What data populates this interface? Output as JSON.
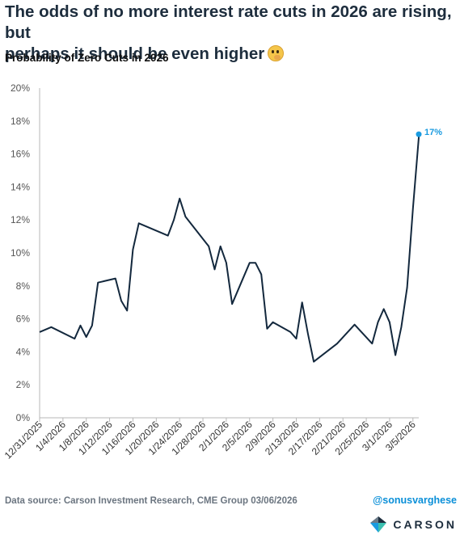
{
  "headline": {
    "line1": "The odds of no more interest rate cuts in 2026 are rising, but",
    "line2": "perhaps it should be even higher"
  },
  "chart_data": {
    "type": "line",
    "title": "Probability of Zero Cuts in 2026",
    "xlabel": "",
    "ylabel": "",
    "x_ticks": [
      "12/31/2025",
      "1/4/2026",
      "1/8/2026",
      "1/12/2026",
      "1/16/2026",
      "1/20/2026",
      "1/24/2026",
      "1/28/2026",
      "2/1/2026",
      "2/5/2026",
      "2/9/2026",
      "2/13/2026",
      "2/17/2026",
      "2/21/2026",
      "2/25/2026",
      "3/1/2026",
      "3/5/2026"
    ],
    "y_ticks": [
      "0%",
      "2%",
      "4%",
      "6%",
      "8%",
      "10%",
      "12%",
      "14%",
      "16%",
      "18%",
      "20%"
    ],
    "ylim": [
      0,
      20
    ],
    "xlim": [
      "12/31/2025",
      "3/6/2026"
    ],
    "grid": false,
    "line_color": "#13283d",
    "end_point_color": "#1a9be0",
    "end_label": "17%",
    "series": [
      {
        "values": [
          {
            "x": "12/31/2025",
            "y": 5.2
          },
          {
            "x": "1/2/2026",
            "y": 5.5
          },
          {
            "x": "1/6/2026",
            "y": 4.8
          },
          {
            "x": "1/7/2026",
            "y": 5.6
          },
          {
            "x": "1/8/2026",
            "y": 4.9
          },
          {
            "x": "1/9/2026",
            "y": 5.6
          },
          {
            "x": "1/10/2026",
            "y": 8.2
          },
          {
            "x": "1/13/2026",
            "y": 8.45
          },
          {
            "x": "1/14/2026",
            "y": 7.1
          },
          {
            "x": "1/15/2026",
            "y": 6.5
          },
          {
            "x": "1/16/2026",
            "y": 10.2
          },
          {
            "x": "1/17/2026",
            "y": 11.8
          },
          {
            "x": "1/22/2026",
            "y": 11.05
          },
          {
            "x": "1/23/2026",
            "y": 12.0
          },
          {
            "x": "1/24/2026",
            "y": 13.3
          },
          {
            "x": "1/25/2026",
            "y": 12.2
          },
          {
            "x": "1/29/2026",
            "y": 10.4
          },
          {
            "x": "1/30/2026",
            "y": 9.0
          },
          {
            "x": "1/31/2026",
            "y": 10.4
          },
          {
            "x": "2/1/2026",
            "y": 9.4
          },
          {
            "x": "2/2/2026",
            "y": 6.9
          },
          {
            "x": "2/5/2026",
            "y": 9.4
          },
          {
            "x": "2/6/2026",
            "y": 9.4
          },
          {
            "x": "2/7/2026",
            "y": 8.7
          },
          {
            "x": "2/8/2026",
            "y": 5.4
          },
          {
            "x": "2/9/2026",
            "y": 5.8
          },
          {
            "x": "2/12/2026",
            "y": 5.2
          },
          {
            "x": "2/13/2026",
            "y": 4.8
          },
          {
            "x": "2/14/2026",
            "y": 7.0
          },
          {
            "x": "2/15/2026",
            "y": 5.1
          },
          {
            "x": "2/16/2026",
            "y": 3.4
          },
          {
            "x": "2/20/2026",
            "y": 4.5
          },
          {
            "x": "2/23/2026",
            "y": 5.65
          },
          {
            "x": "2/26/2026",
            "y": 4.5
          },
          {
            "x": "2/27/2026",
            "y": 5.8
          },
          {
            "x": "2/28/2026",
            "y": 6.6
          },
          {
            "x": "3/1/2026",
            "y": 5.8
          },
          {
            "x": "3/2/2026",
            "y": 3.8
          },
          {
            "x": "3/3/2026",
            "y": 5.5
          },
          {
            "x": "3/4/2026",
            "y": 7.9
          },
          {
            "x": "3/5/2026",
            "y": 12.7
          },
          {
            "x": "3/6/2026",
            "y": 17.0
          },
          {
            "x": "3/6/2026",
            "y": 17.2
          }
        ]
      }
    ]
  },
  "footer": {
    "source": "Data source: Carson Investment Research, CME Group   03/06/2026",
    "handle": "@sonusvarghese",
    "brand": "CARSON"
  }
}
